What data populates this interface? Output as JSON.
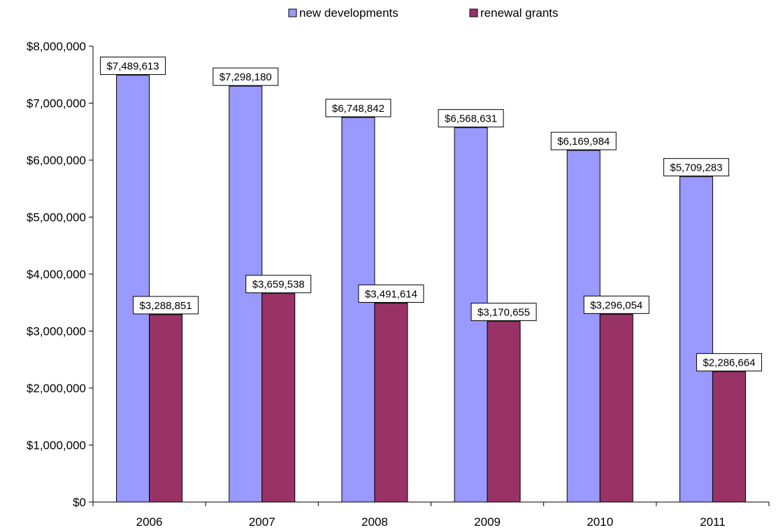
{
  "chart_data": {
    "type": "bar",
    "title": "",
    "xlabel": "",
    "ylabel": "",
    "categories": [
      "2006",
      "2007",
      "2008",
      "2009",
      "2010",
      "2011"
    ],
    "ylim": [
      0,
      8000000
    ],
    "y_ticks": [
      0,
      1000000,
      2000000,
      3000000,
      4000000,
      5000000,
      6000000,
      7000000,
      8000000
    ],
    "y_tick_labels": [
      "$0",
      "$1,000,000",
      "$2,000,000",
      "$3,000,000",
      "$4,000,000",
      "$5,000,000",
      "$6,000,000",
      "$7,000,000",
      "$8,000,000"
    ],
    "grid": false,
    "legend_position": "top",
    "series": [
      {
        "name": "new developments",
        "color": "#9999FF",
        "values": [
          7489613,
          7298180,
          6748842,
          6568631,
          6169984,
          5709283
        ],
        "labels": [
          "$7,489,613",
          "$7,298,180",
          "$6,748,842",
          "$6,568,631",
          "$6,169,984",
          "$5,709,283"
        ]
      },
      {
        "name": "renewal grants",
        "color": "#993366",
        "values": [
          3288851,
          3659538,
          3491614,
          3170655,
          3296054,
          2286664
        ],
        "labels": [
          "$3,288,851",
          "$3,659,538",
          "$3,491,614",
          "$3,170,655",
          "$3,296,054",
          "$2,286,664"
        ]
      }
    ]
  }
}
